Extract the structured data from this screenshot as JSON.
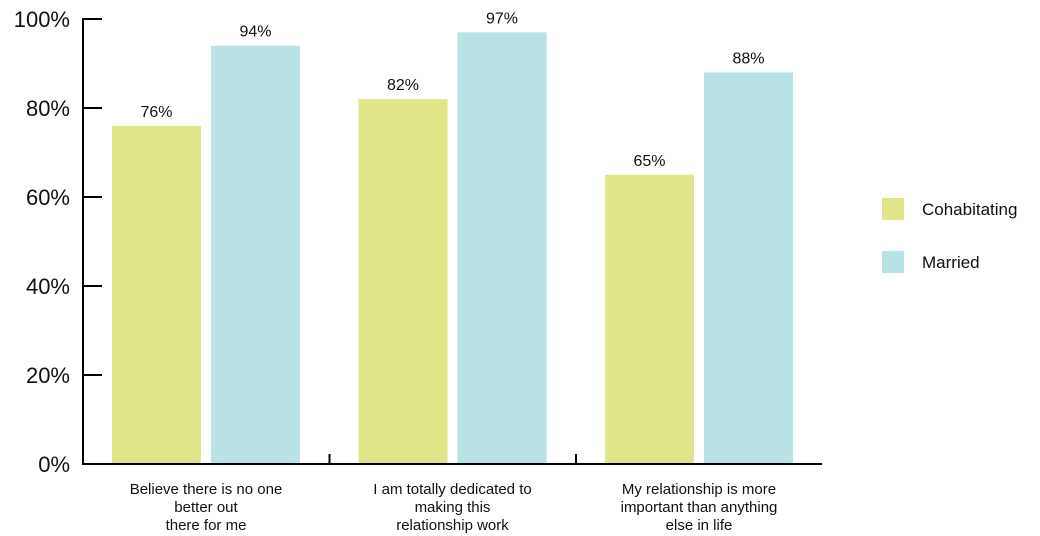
{
  "chart_data": {
    "type": "bar",
    "title": "",
    "xlabel": "",
    "ylabel": "",
    "ylim": [
      0,
      100
    ],
    "y_ticks": [
      0,
      20,
      40,
      60,
      80,
      100
    ],
    "y_tick_labels": [
      "0%",
      "20%",
      "40%",
      "60%",
      "80%",
      "100%"
    ],
    "categories": [
      [
        "Believe there is no one",
        "better out",
        "there for me"
      ],
      [
        "I am totally dedicated to",
        "making this",
        "relationship work"
      ],
      [
        "My relationship is more",
        "important than anything",
        "else in life"
      ]
    ],
    "series": [
      {
        "name": "Cohabitating",
        "color": "#e1e68a",
        "values": [
          76,
          82,
          65
        ],
        "labels": [
          "76%",
          "82%",
          "65%"
        ]
      },
      {
        "name": "Married",
        "color": "#b9e2e4",
        "values": [
          94,
          97,
          88
        ],
        "labels": [
          "94%",
          "97%",
          "88%"
        ]
      }
    ],
    "grid": false,
    "legend_position": "right"
  }
}
